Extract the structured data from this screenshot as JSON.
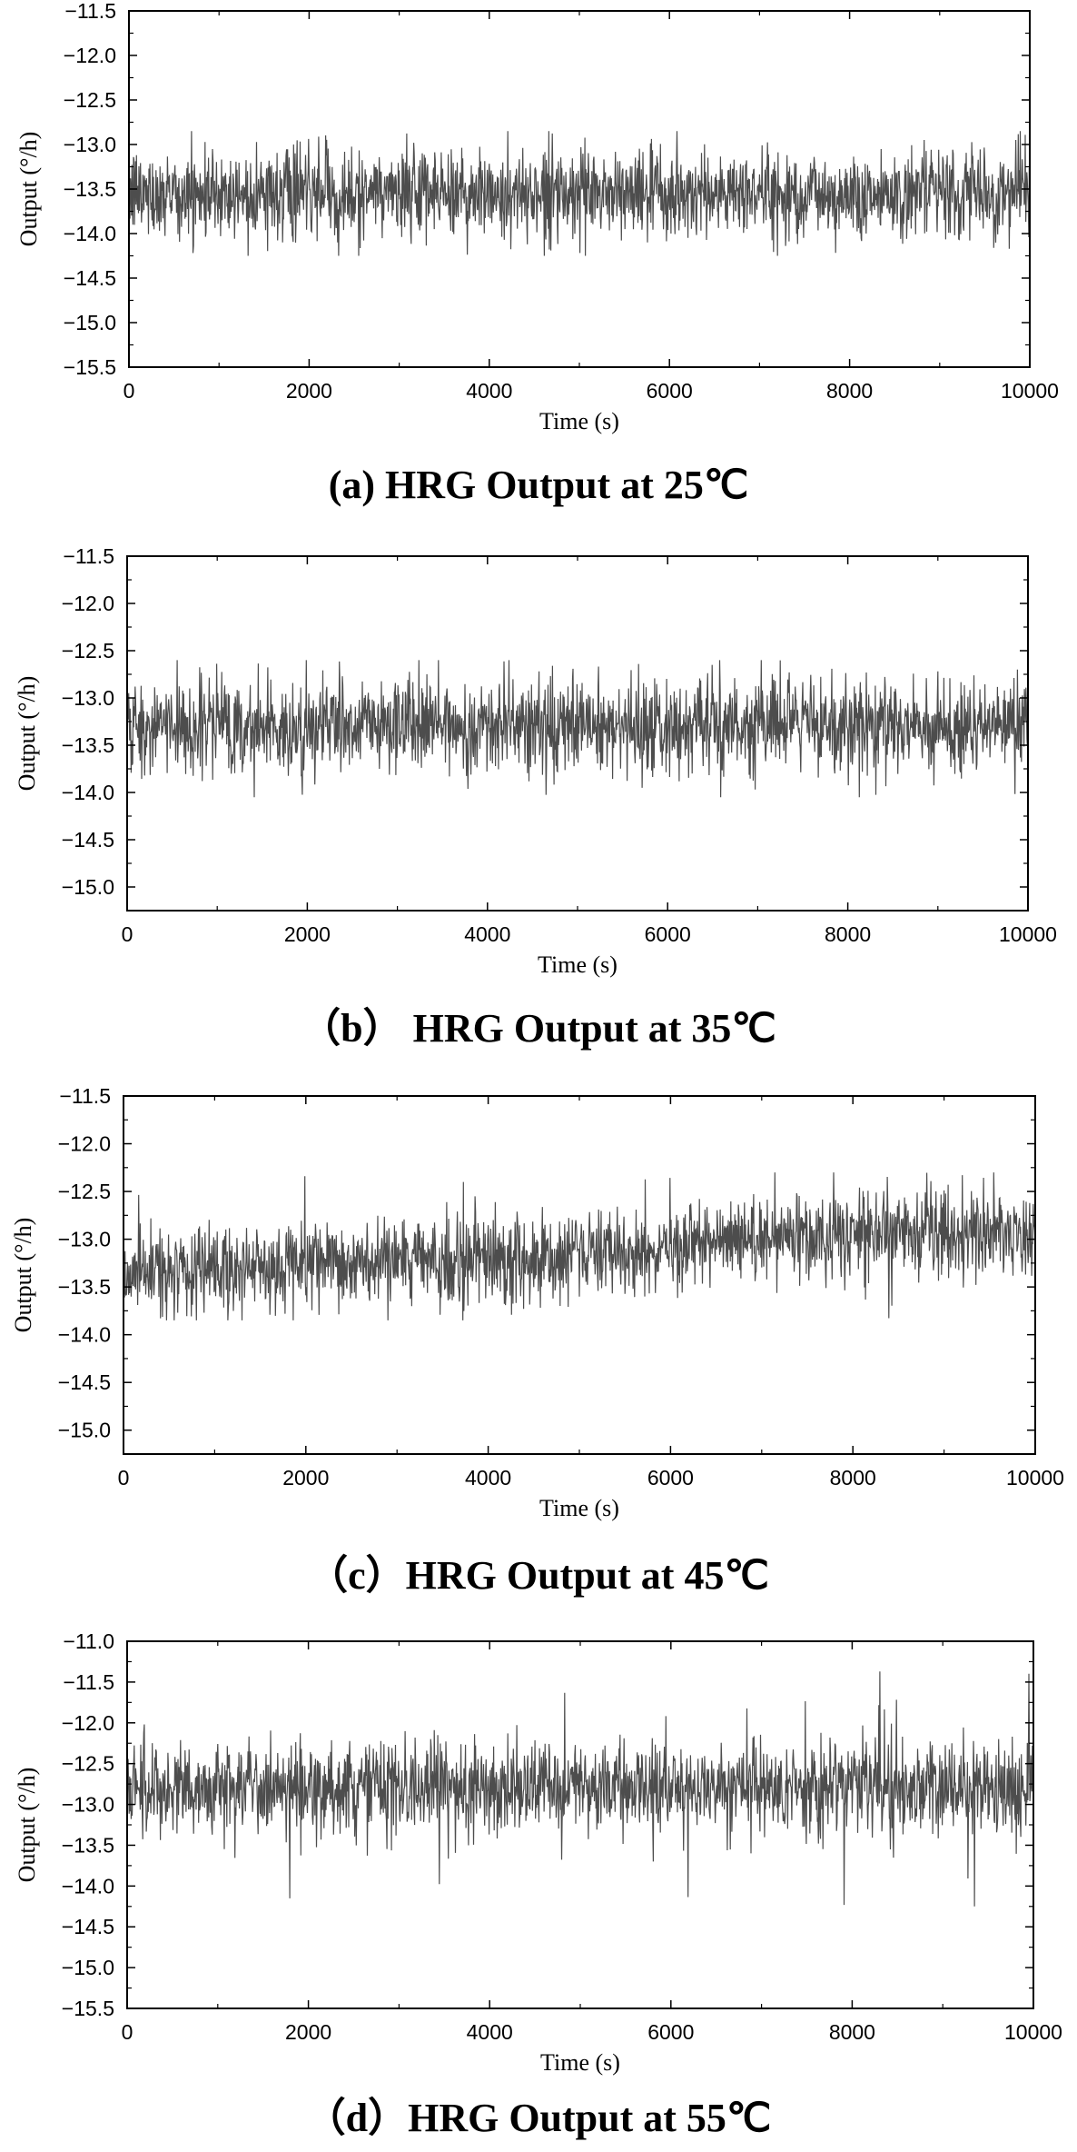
{
  "chart_data": [
    {
      "type": "line",
      "caption": "(a) HRG Output at 25℃",
      "xlabel": "Time (s)",
      "ylabel": "Output (°/h)",
      "xlim": [
        0,
        10000
      ],
      "ylim": [
        -15.5,
        -11.5
      ],
      "xticks": [
        "0",
        "2000",
        "4000",
        "6000",
        "8000",
        "10000"
      ],
      "yticks": [
        "-11.5",
        "-12.0",
        "-12.5",
        "-13.0",
        "-13.5",
        "-14.0",
        "-14.5",
        "-15.0",
        "-15.5"
      ],
      "series": [
        {
          "color": "#4d4d4d",
          "x_start": 0,
          "x_end": 10000,
          "envelope": {
            "x": [
              0,
              2000,
              4000,
              6000,
              8000,
              10000
            ],
            "center": [
              -13.55,
              -13.55,
              -13.55,
              -13.55,
              -13.55,
              -13.55
            ],
            "core_band": [
              -13.95,
              -13.15
            ],
            "min_excursion": -14.25,
            "max_excursion": -12.85
          }
        }
      ],
      "grid": false
    },
    {
      "type": "line",
      "caption": "（b）  HRG Output at 35℃",
      "xlabel": "Time (s)",
      "ylabel": "Output (°/h)",
      "xlim": [
        0,
        10000
      ],
      "ylim": [
        -15.25,
        -11.5
      ],
      "xticks": [
        "0",
        "2000",
        "4000",
        "6000",
        "8000",
        "10000"
      ],
      "yticks": [
        "-11.5",
        "-12.0",
        "-12.5",
        "-13.0",
        "-13.5",
        "-14.0",
        "-14.5",
        "-15.0"
      ],
      "series": [
        {
          "color": "#4d4d4d",
          "x_start": 0,
          "x_end": 10000,
          "envelope": {
            "x": [
              0,
              2000,
              4000,
              6000,
              8000,
              10000
            ],
            "center": [
              -13.3,
              -13.3,
              -13.3,
              -13.3,
              -13.3,
              -13.3
            ],
            "core_band": [
              -13.7,
              -12.9
            ],
            "min_excursion": -14.05,
            "max_excursion": -12.6
          }
        }
      ],
      "grid": false
    },
    {
      "type": "line",
      "caption": "（c）HRG Output at 45℃",
      "xlabel": "Time (s)",
      "ylabel": "Output (°/h)",
      "xlim": [
        0,
        10000
      ],
      "ylim": [
        -15.25,
        -11.5
      ],
      "xticks": [
        "0",
        "2000",
        "4000",
        "6000",
        "8000",
        "10000"
      ],
      "yticks": [
        "-11.5",
        "-12.0",
        "-12.5",
        "-13.0",
        "-13.5",
        "-14.0",
        "-14.5",
        "-15.0"
      ],
      "series": [
        {
          "color": "#4d4d4d",
          "x_start": 0,
          "x_end": 10000,
          "envelope": {
            "x": [
              0,
              2000,
              4000,
              6000,
              8000,
              10000
            ],
            "center": [
              -13.35,
              -13.3,
              -13.2,
              -13.1,
              -12.95,
              -12.95
            ],
            "core_band": [
              -0.35,
              0.35
            ],
            "min_excursion": -13.85,
            "max_excursion": -12.3
          }
        }
      ],
      "grid": false
    },
    {
      "type": "line",
      "caption": "（d）HRG Output at 55℃",
      "xlabel": "Time (s)",
      "ylabel": "Output (°/h)",
      "xlim": [
        0,
        10000
      ],
      "ylim": [
        -15.5,
        -11.0
      ],
      "xticks": [
        "0",
        "2000",
        "4000",
        "6000",
        "8000",
        "10000"
      ],
      "yticks": [
        "-11.0",
        "-11.5",
        "-12.0",
        "-12.5",
        "-13.0",
        "-13.5",
        "-14.0",
        "-14.5",
        "-15.0",
        "-15.5"
      ],
      "series": [
        {
          "color": "#4d4d4d",
          "x_start": 0,
          "x_end": 10000,
          "envelope": {
            "x": [
              0,
              2000,
              4000,
              6000,
              8000,
              10000
            ],
            "center": [
              -12.8,
              -12.8,
              -12.8,
              -12.8,
              -12.8,
              -12.8
            ],
            "core_band": [
              -0.45,
              0.45
            ],
            "min_excursion": -14.25,
            "max_excursion": -11.2
          }
        }
      ],
      "grid": false
    }
  ]
}
